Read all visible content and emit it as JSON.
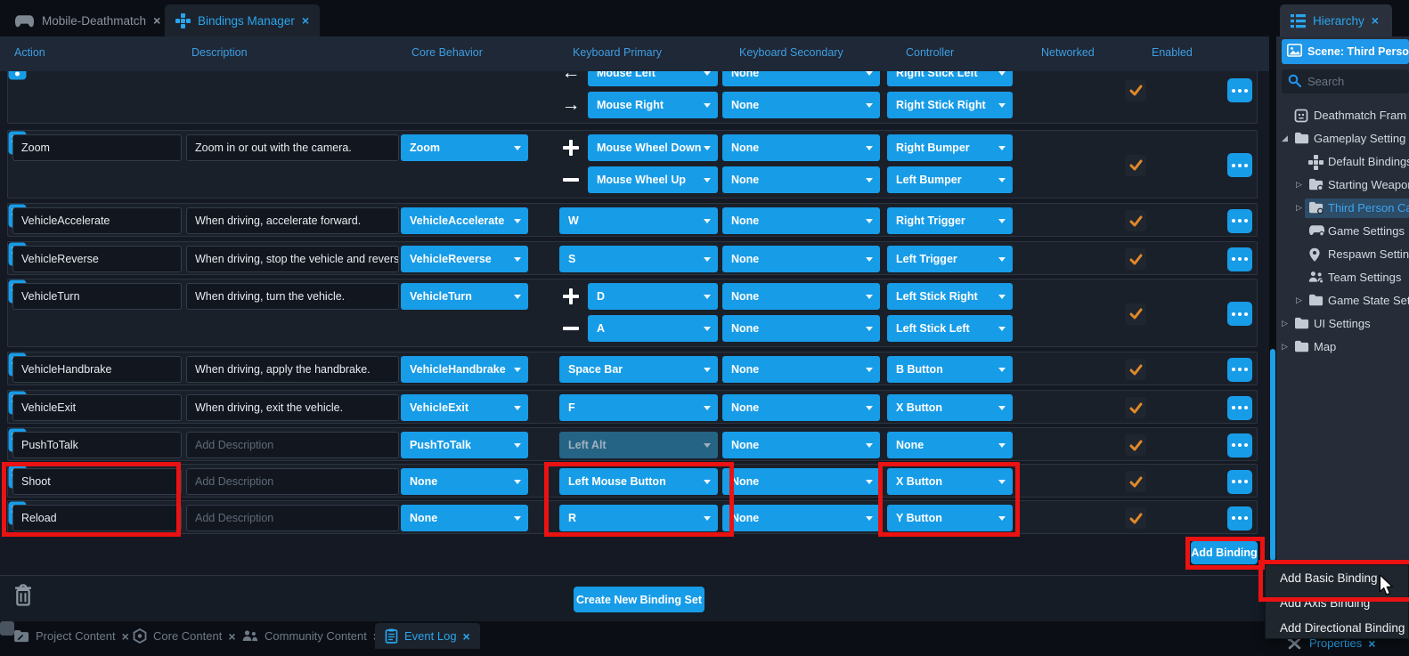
{
  "colors": {
    "accent_blue": "#179ce8",
    "check_orange": "#e0892a",
    "highlight_red": "#ea1212",
    "selected_tree": "#3fa3ee"
  },
  "top_tabs": [
    {
      "label": "Mobile-Deathmatch",
      "icon": "gamepad-icon",
      "active": false
    },
    {
      "label": "Bindings Manager",
      "icon": "dpad-icon",
      "active": true
    }
  ],
  "hierarchy_tab": {
    "label": "Hierarchy",
    "icon": "hierarchy-icon"
  },
  "table": {
    "columns": [
      "Action",
      "Description",
      "Core Behavior",
      "Keyboard Primary",
      "Keyboard Secondary",
      "Controller",
      "Networked",
      "Enabled"
    ],
    "rows": [
      {
        "action": null,
        "description": null,
        "description_placeholder": null,
        "core_behavior": null,
        "networked": true,
        "enabled": true,
        "highlight": false,
        "bindings": [
          {
            "sign": "arrow-left",
            "keyboard_primary": "Mouse Left",
            "keyboard_secondary": "None",
            "controller": "Right Stick Left",
            "kp_disabled": false
          },
          {
            "sign": "arrow-right",
            "keyboard_primary": "Mouse Right",
            "keyboard_secondary": "None",
            "controller": "Right Stick Right",
            "kp_disabled": false
          }
        ]
      },
      {
        "action": "Zoom",
        "description": "Zoom in or out with the camera.",
        "description_placeholder": null,
        "core_behavior": "Zoom",
        "networked": true,
        "enabled": true,
        "highlight": false,
        "bindings": [
          {
            "sign": "plus",
            "keyboard_primary": "Mouse Wheel Down",
            "keyboard_secondary": "None",
            "controller": "Right Bumper",
            "kp_disabled": false
          },
          {
            "sign": "minus",
            "keyboard_primary": "Mouse Wheel Up",
            "keyboard_secondary": "None",
            "controller": "Left Bumper",
            "kp_disabled": false
          }
        ]
      },
      {
        "action": "VehicleAccelerate",
        "description": "When driving, accelerate forward.",
        "description_placeholder": null,
        "core_behavior": "VehicleAccelerate",
        "networked": true,
        "enabled": true,
        "highlight": false,
        "bindings": [
          {
            "sign": null,
            "keyboard_primary": "W",
            "keyboard_secondary": "None",
            "controller": "Right Trigger",
            "kp_disabled": false
          }
        ]
      },
      {
        "action": "VehicleReverse",
        "description": "When driving, stop the vehicle and reverse.",
        "description_placeholder": null,
        "core_behavior": "VehicleReverse",
        "networked": true,
        "enabled": true,
        "highlight": false,
        "bindings": [
          {
            "sign": null,
            "keyboard_primary": "S",
            "keyboard_secondary": "None",
            "controller": "Left Trigger",
            "kp_disabled": false
          }
        ]
      },
      {
        "action": "VehicleTurn",
        "description": "When driving, turn the vehicle.",
        "description_placeholder": null,
        "core_behavior": "VehicleTurn",
        "networked": true,
        "enabled": true,
        "highlight": false,
        "bindings": [
          {
            "sign": "plus",
            "keyboard_primary": "D",
            "keyboard_secondary": "None",
            "controller": "Left Stick Right",
            "kp_disabled": false
          },
          {
            "sign": "minus",
            "keyboard_primary": "A",
            "keyboard_secondary": "None",
            "controller": "Left Stick Left",
            "kp_disabled": false
          }
        ]
      },
      {
        "action": "VehicleHandbrake",
        "description": "When driving, apply the handbrake.",
        "description_placeholder": null,
        "core_behavior": "VehicleHandbrake",
        "networked": true,
        "enabled": true,
        "highlight": false,
        "bindings": [
          {
            "sign": null,
            "keyboard_primary": "Space Bar",
            "keyboard_secondary": "None",
            "controller": "B Button",
            "kp_disabled": false
          }
        ]
      },
      {
        "action": "VehicleExit",
        "description": "When driving, exit the vehicle.",
        "description_placeholder": null,
        "core_behavior": "VehicleExit",
        "networked": true,
        "enabled": true,
        "highlight": false,
        "bindings": [
          {
            "sign": null,
            "keyboard_primary": "F",
            "keyboard_secondary": "None",
            "controller": "X Button",
            "kp_disabled": false
          }
        ]
      },
      {
        "action": "PushToTalk",
        "description": "",
        "description_placeholder": "Add Description",
        "core_behavior": "PushToTalk",
        "networked": true,
        "enabled": true,
        "highlight": false,
        "bindings": [
          {
            "sign": null,
            "keyboard_primary": "Left Alt",
            "keyboard_secondary": "None",
            "controller": "None",
            "kp_disabled": true
          }
        ]
      },
      {
        "action": "Shoot",
        "description": "",
        "description_placeholder": "Add Description",
        "core_behavior": "None",
        "networked": true,
        "enabled": true,
        "highlight": true,
        "bindings": [
          {
            "sign": null,
            "keyboard_primary": "Left Mouse Button",
            "keyboard_secondary": "None",
            "controller": "X Button",
            "kp_disabled": false
          }
        ]
      },
      {
        "action": "Reload",
        "description": "",
        "description_placeholder": "Add Description",
        "core_behavior": "None",
        "networked": true,
        "enabled": true,
        "highlight": true,
        "bindings": [
          {
            "sign": null,
            "keyboard_primary": "R",
            "keyboard_secondary": "None",
            "controller": "Y Button",
            "kp_disabled": false
          }
        ]
      }
    ],
    "add_binding_label": "Add Binding",
    "create_binding_set_label": "Create New Binding Set"
  },
  "context_menu": {
    "items": [
      "Add Basic Binding",
      "Add Axis Binding",
      "Add Directional Binding"
    ]
  },
  "sidebar": {
    "scene_label": "Scene: Third Perso",
    "search_placeholder": "Search",
    "tree": [
      {
        "label": "Deathmatch Fram",
        "icon": "framework-icon",
        "arrow": null,
        "level": 0,
        "selected": false
      },
      {
        "label": "Gameplay Setting",
        "icon": "folder-icon",
        "arrow": "expanded",
        "level": 0,
        "selected": false
      },
      {
        "label": "Default Bindings",
        "icon": "dpad-icon",
        "arrow": null,
        "level": 1,
        "selected": false
      },
      {
        "label": "Starting Weapon",
        "icon": "folder-gear-icon",
        "arrow": "collapsed",
        "level": 1,
        "selected": false
      },
      {
        "label": "Third Person Ca",
        "icon": "folder-gear-icon",
        "arrow": "collapsed",
        "level": 1,
        "selected": true
      },
      {
        "label": "Game Settings",
        "icon": "gamepad-gear-icon",
        "arrow": null,
        "level": 1,
        "selected": false
      },
      {
        "label": "Respawn Settin",
        "icon": "pin-icon",
        "arrow": null,
        "level": 1,
        "selected": false
      },
      {
        "label": "Team Settings",
        "icon": "team-icon",
        "arrow": null,
        "level": 1,
        "selected": false
      },
      {
        "label": "Game State Set",
        "icon": "folder-icon",
        "arrow": "collapsed",
        "level": 1,
        "selected": false
      },
      {
        "label": "UI Settings",
        "icon": "folder-icon",
        "arrow": "collapsed",
        "level": 0,
        "selected": false
      },
      {
        "label": "Map",
        "icon": "folder-icon",
        "arrow": "collapsed",
        "level": 0,
        "selected": false
      }
    ]
  },
  "bottom_tabs": [
    {
      "label": "Project Content",
      "icon": "project-folder-icon",
      "active": false
    },
    {
      "label": "Core Content",
      "icon": "hexagon-icon",
      "active": false
    },
    {
      "label": "Community Content",
      "icon": "people-icon",
      "active": false
    },
    {
      "label": "Event Log",
      "icon": "clipboard-icon",
      "active": true
    }
  ],
  "properties_tab": {
    "label": "Properties",
    "icon": "tools-icon"
  }
}
